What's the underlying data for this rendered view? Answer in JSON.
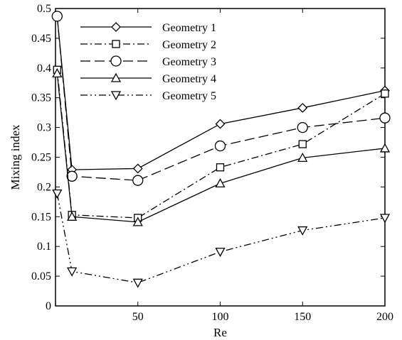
{
  "chart_data": {
    "type": "line",
    "title": "",
    "xlabel": "Re",
    "ylabel": "Mixing index",
    "xlim": [
      0,
      200
    ],
    "ylim": [
      0,
      0.5
    ],
    "x_ticks": [
      50,
      100,
      150,
      200
    ],
    "x_tick_labels": [
      "50",
      "100",
      "150",
      "200"
    ],
    "y_ticks": [
      0,
      0.05,
      0.1,
      0.15,
      0.2,
      0.25,
      0.3,
      0.35,
      0.4,
      0.45,
      0.5
    ],
    "y_tick_labels": [
      "0",
      "0.05",
      "0.1",
      "0.15",
      "0.2",
      "0.25",
      "0.3",
      "0.35",
      "0.4",
      "0.45",
      "0.5"
    ],
    "grid": false,
    "legend_position": "top-left",
    "x": [
      1,
      10,
      50,
      100,
      150,
      200
    ],
    "series": [
      {
        "name": "Geometry 1",
        "values": [
          0.487,
          0.229,
          0.231,
          0.306,
          0.333,
          0.362
        ],
        "marker": "diamond",
        "line_style": "solid"
      },
      {
        "name": "Geometry 2",
        "values": [
          0.397,
          0.153,
          0.148,
          0.233,
          0.272,
          0.357
        ],
        "marker": "square",
        "line_style": "dashdot"
      },
      {
        "name": "Geometry 3",
        "values": [
          0.487,
          0.218,
          0.211,
          0.269,
          0.3,
          0.316
        ],
        "marker": "circle",
        "line_style": "dashed"
      },
      {
        "name": "Geometry 4",
        "values": [
          0.391,
          0.15,
          0.141,
          0.206,
          0.249,
          0.265
        ],
        "marker": "triangle-up",
        "line_style": "solid"
      },
      {
        "name": "Geometry 5",
        "values": [
          0.189,
          0.058,
          0.039,
          0.091,
          0.127,
          0.148
        ],
        "marker": "triangle-down",
        "line_style": "dashdotdot"
      }
    ]
  }
}
